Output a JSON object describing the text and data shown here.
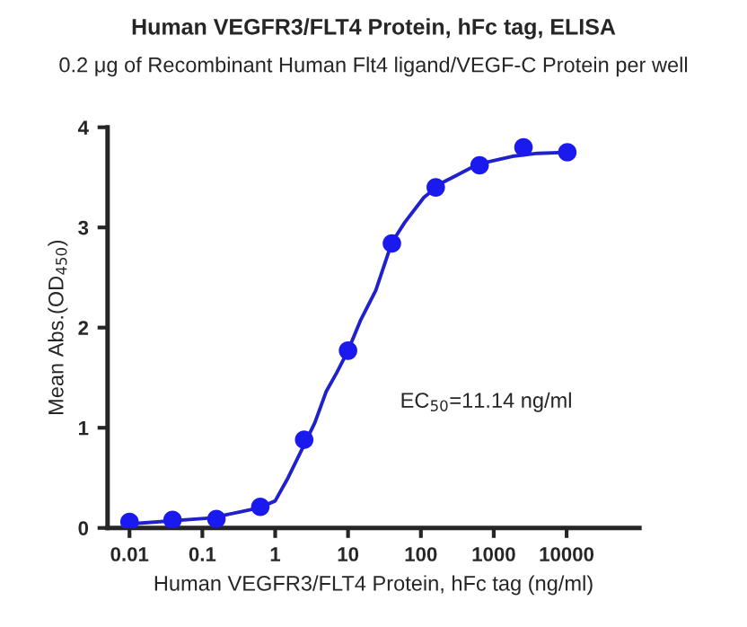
{
  "chart_data": {
    "type": "scatter",
    "title": "Human VEGFR3/FLT4 Protein, hFc tag, ELISA",
    "subtitle": "0.2 μg of Recombinant Human Flt4 ligand/VEGF-C Protein per well",
    "xlabel": "Human VEGFR3/FLT4 Protein, hFc tag (ng/ml)",
    "ylabel": "Mean Abs.(OD$_{450}$)",
    "annotations": [
      "EC$_{50}$=11.14 ng/ml"
    ],
    "log": "x",
    "xlim": [
      0.005,
      100000
    ],
    "xticks": [
      0.01,
      0.1,
      1,
      10,
      100,
      1000,
      10000
    ],
    "ylim": [
      0,
      4
    ],
    "yticks": [
      0,
      1,
      2,
      3,
      4
    ],
    "grid": false,
    "legend": false,
    "marker": "circle",
    "series": [
      {
        "color": "#1a1aee",
        "x": [
          0.01,
          0.039,
          0.156,
          0.625,
          2.5,
          10,
          40,
          160,
          640,
          2560,
          10240
        ],
        "values": [
          0.06,
          0.08,
          0.09,
          0.21,
          0.88,
          1.77,
          2.84,
          3.4,
          3.62,
          3.8,
          3.75
        ]
      },
      {
        "type": "line",
        "color": "#2020cc",
        "marker": "none",
        "line_style": "solid",
        "x": [
          0.01,
          0.13,
          0.33,
          0.6,
          1,
          1.5,
          2.5,
          3.5,
          5,
          7,
          10,
          15,
          24,
          40,
          60,
          110,
          200,
          330,
          600,
          1800,
          4000,
          10000
        ],
        "values": [
          0.04,
          0.1,
          0.16,
          0.2,
          0.27,
          0.5,
          0.83,
          1.05,
          1.36,
          1.55,
          1.77,
          2.08,
          2.37,
          2.85,
          3.05,
          3.3,
          3.45,
          3.53,
          3.63,
          3.71,
          3.74,
          3.75
        ]
      }
    ]
  }
}
